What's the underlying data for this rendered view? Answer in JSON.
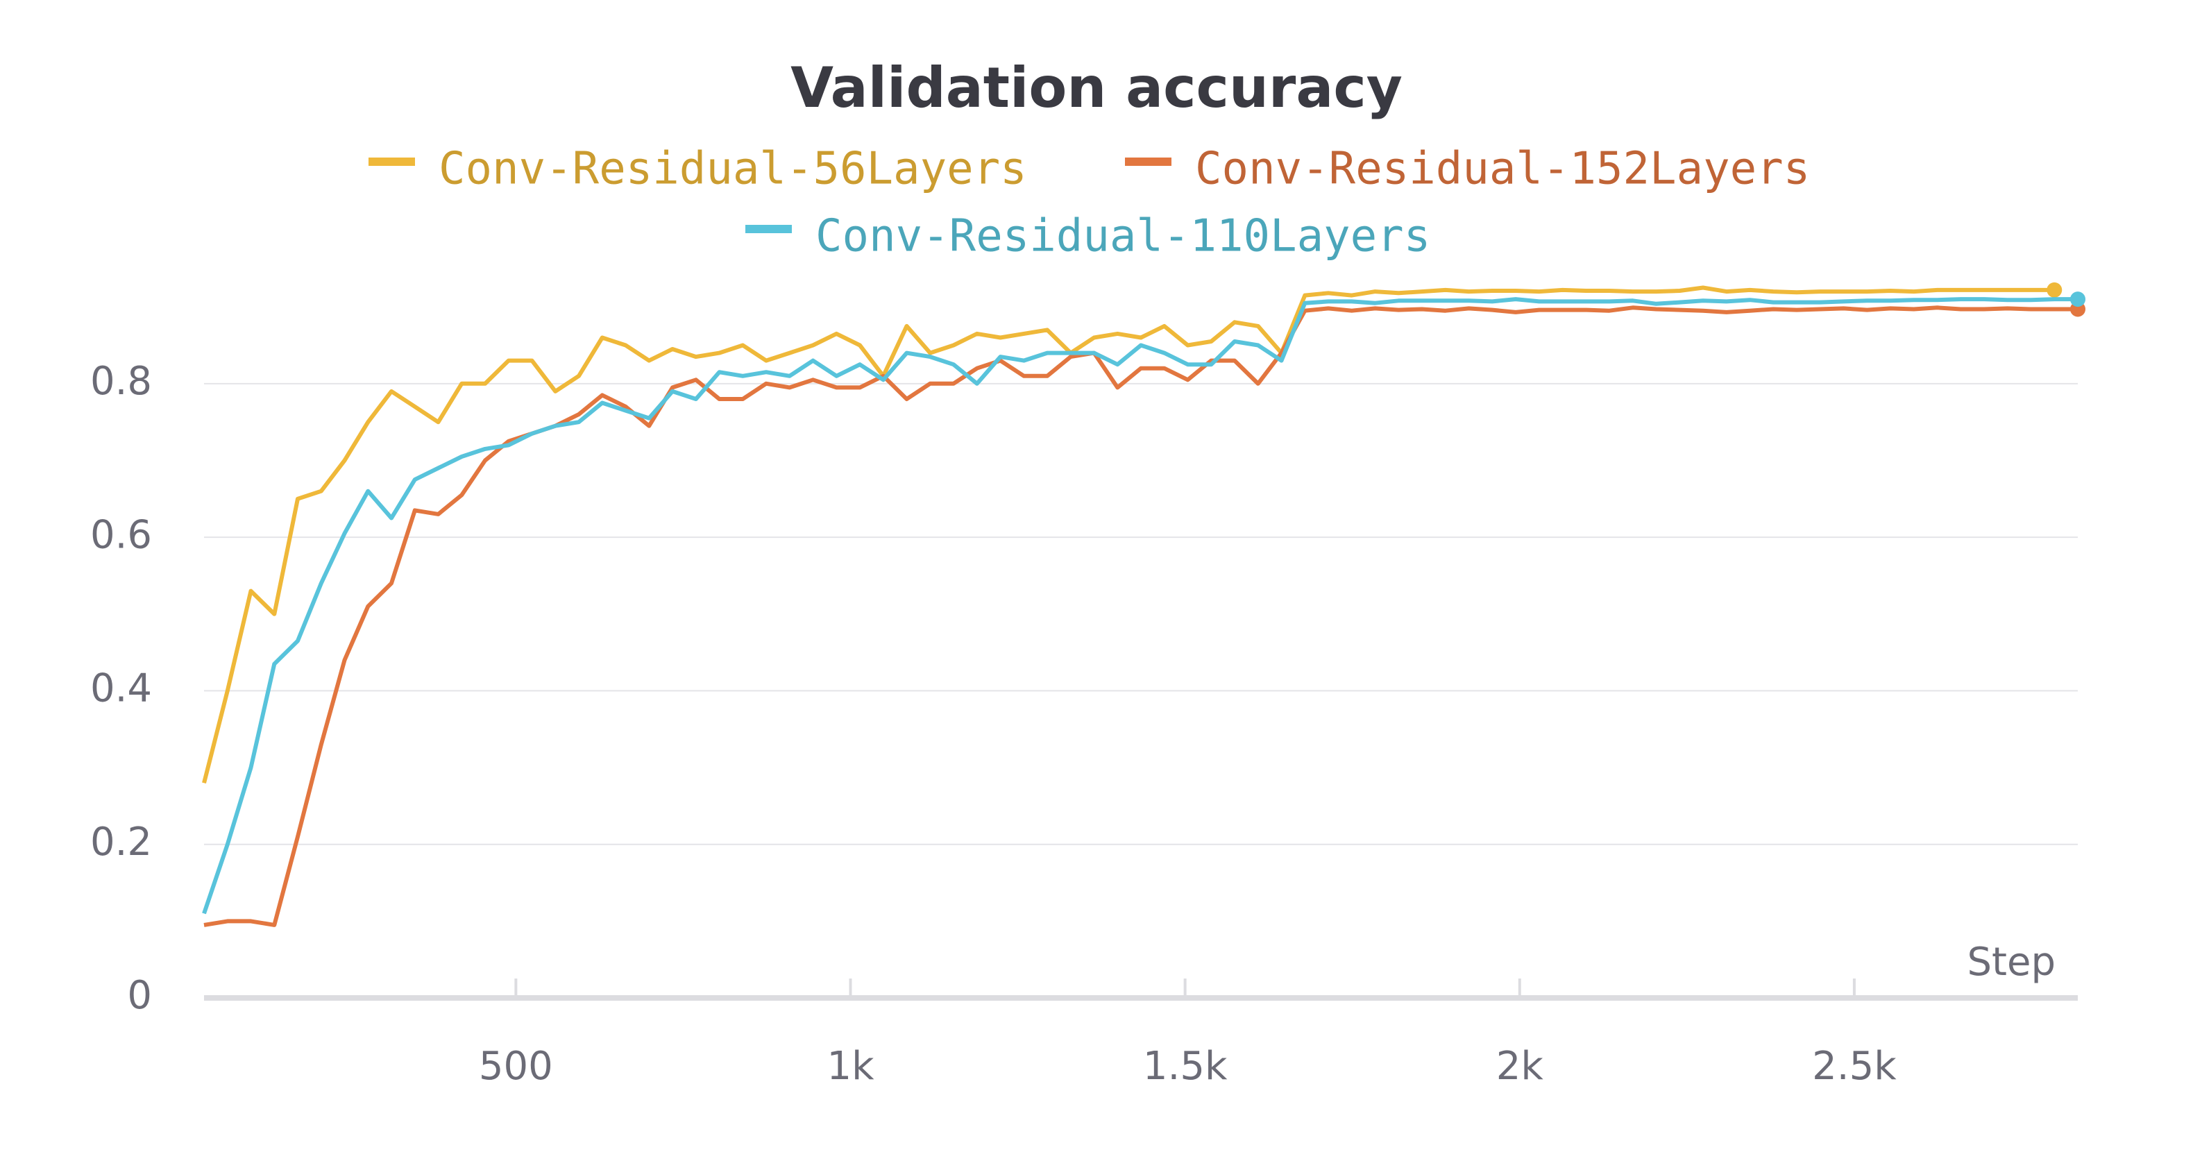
{
  "chart_data": {
    "type": "line",
    "title": "Validation accuracy",
    "x_label": "Step",
    "x": [
      34,
      69,
      104,
      139,
      174,
      209,
      244,
      279,
      314,
      349,
      384,
      419,
      454,
      489,
      524,
      559,
      594,
      629,
      664,
      699,
      734,
      769,
      804,
      839,
      874,
      909,
      944,
      979,
      1014,
      1049,
      1084,
      1119,
      1154,
      1189,
      1224,
      1259,
      1294,
      1329,
      1364,
      1399,
      1434,
      1469,
      1504,
      1539,
      1574,
      1609,
      1644,
      1679,
      1714,
      1749,
      1784,
      1819,
      1854,
      1889,
      1924,
      1959,
      1994,
      2029,
      2064,
      2099,
      2134,
      2169,
      2204,
      2239,
      2274,
      2309,
      2344,
      2379,
      2414,
      2449,
      2484,
      2519,
      2554,
      2589,
      2624,
      2659,
      2694,
      2729,
      2764,
      2799,
      2834
    ],
    "series": [
      {
        "name": "Conv-Residual-56Layers",
        "color": "#efb839",
        "values": [
          0.28,
          0.4,
          0.53,
          0.5,
          0.65,
          0.66,
          0.7,
          0.75,
          0.79,
          0.77,
          0.75,
          0.8,
          0.8,
          0.83,
          0.83,
          0.79,
          0.81,
          0.86,
          0.85,
          0.83,
          0.845,
          0.835,
          0.84,
          0.85,
          0.83,
          0.84,
          0.85,
          0.865,
          0.85,
          0.81,
          0.875,
          0.84,
          0.85,
          0.865,
          0.86,
          0.865,
          0.87,
          0.84,
          0.86,
          0.865,
          0.86,
          0.875,
          0.85,
          0.855,
          0.88,
          0.875,
          0.84,
          0.915,
          0.918,
          0.915,
          0.92,
          0.918,
          0.92,
          0.922,
          0.92,
          0.921,
          0.921,
          0.92,
          0.922,
          0.921,
          0.921,
          0.92,
          0.92,
          0.921,
          0.925,
          0.92,
          0.922,
          0.92,
          0.919,
          0.92,
          0.92,
          0.92,
          0.921,
          0.92,
          0.922,
          0.922,
          0.922,
          0.922,
          0.922,
          0.922,
          null
        ]
      },
      {
        "name": "Conv-Residual-152Layers",
        "color": "#e2763f",
        "values": [
          0.095,
          0.1,
          0.1,
          0.095,
          0.21,
          0.33,
          0.44,
          0.51,
          0.54,
          0.635,
          0.63,
          0.655,
          0.7,
          0.725,
          0.735,
          0.745,
          0.76,
          0.785,
          0.77,
          0.745,
          0.795,
          0.805,
          0.78,
          0.78,
          0.8,
          0.795,
          0.805,
          0.795,
          0.795,
          0.81,
          0.78,
          0.8,
          0.8,
          0.82,
          0.83,
          0.81,
          0.81,
          0.835,
          0.84,
          0.795,
          0.82,
          0.82,
          0.805,
          0.83,
          0.83,
          0.8,
          0.84,
          0.895,
          0.898,
          0.895,
          0.898,
          0.896,
          0.897,
          0.895,
          0.898,
          0.896,
          0.893,
          0.896,
          0.896,
          0.896,
          0.895,
          0.899,
          0.897,
          0.896,
          0.895,
          0.893,
          0.895,
          0.897,
          0.896,
          0.897,
          0.898,
          0.896,
          0.898,
          0.897,
          0.899,
          0.897,
          0.897,
          0.898,
          0.897,
          0.897,
          0.897
        ]
      },
      {
        "name": "Conv-Residual-110Layers",
        "color": "#58c3db",
        "values": [
          0.11,
          0.2,
          0.3,
          0.435,
          0.465,
          0.54,
          0.605,
          0.66,
          0.625,
          0.675,
          0.69,
          0.705,
          0.715,
          0.72,
          0.735,
          0.745,
          0.75,
          0.775,
          0.765,
          0.755,
          0.79,
          0.78,
          0.815,
          0.81,
          0.815,
          0.81,
          0.83,
          0.81,
          0.825,
          0.805,
          0.84,
          0.835,
          0.825,
          0.8,
          0.835,
          0.83,
          0.84,
          0.84,
          0.84,
          0.825,
          0.85,
          0.84,
          0.825,
          0.825,
          0.855,
          0.85,
          0.83,
          0.905,
          0.907,
          0.907,
          0.905,
          0.908,
          0.908,
          0.908,
          0.908,
          0.907,
          0.91,
          0.907,
          0.907,
          0.907,
          0.907,
          0.908,
          0.904,
          0.906,
          0.908,
          0.907,
          0.909,
          0.906,
          0.906,
          0.906,
          0.907,
          0.908,
          0.908,
          0.909,
          0.909,
          0.91,
          0.91,
          0.909,
          0.909,
          0.91,
          0.91
        ]
      }
    ],
    "xlim": [
      34,
      2834
    ],
    "ylim": [
      0,
      0.93
    ],
    "xticks": [
      {
        "value": 500,
        "label": "500"
      },
      {
        "value": 1000,
        "label": "1k"
      },
      {
        "value": 1500,
        "label": "1.5k"
      },
      {
        "value": 2000,
        "label": "2k"
      },
      {
        "value": 2500,
        "label": "2.5k"
      }
    ],
    "yticks": [
      0,
      0.2,
      0.4,
      0.6,
      0.8
    ],
    "grid": true
  }
}
